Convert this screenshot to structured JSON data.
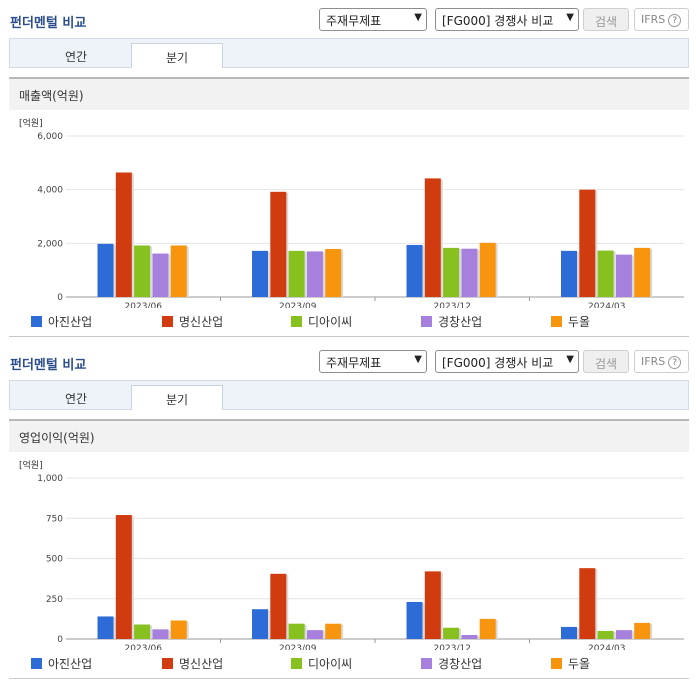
{
  "header": {
    "title": "펀더멘털 비교",
    "statement_select": "주재무제표",
    "compare_select": "[FG000] 경쟁사 비교",
    "search_label": "검색",
    "ifrs_label": "IFRS",
    "help_glyph": "?"
  },
  "tabs": [
    {
      "label": "연간",
      "active": false
    },
    {
      "label": "분기",
      "active": true
    }
  ],
  "legend": [
    {
      "label": "아진산업",
      "color": "#2d6bd6"
    },
    {
      "label": "명신산업",
      "color": "#d13b10"
    },
    {
      "label": "디아이씨",
      "color": "#86c11f"
    },
    {
      "label": "경창산업",
      "color": "#a77fdc"
    },
    {
      "label": "두올",
      "color": "#f7960e"
    }
  ],
  "chart_data": [
    {
      "type": "bar",
      "title": "매출액(억원)",
      "unit_label": "[억원]",
      "categories": [
        "2023/06",
        "2023/09",
        "2023/12",
        "2024/03"
      ],
      "ylim": [
        0,
        6000
      ],
      "yticks": [
        0,
        2000,
        4000,
        6000
      ],
      "ytick_labels": [
        "0",
        "2,000",
        "4,000",
        "6,000"
      ],
      "grid": true,
      "legend_position": "bottom",
      "series": [
        {
          "name": "아진산업",
          "values": [
            1980,
            1720,
            1940,
            1720
          ]
        },
        {
          "name": "명신산업",
          "values": [
            4640,
            3920,
            4420,
            4000
          ]
        },
        {
          "name": "디아이씨",
          "values": [
            1920,
            1720,
            1830,
            1730
          ]
        },
        {
          "name": "경창산업",
          "values": [
            1620,
            1700,
            1800,
            1580
          ]
        },
        {
          "name": "두올",
          "values": [
            1920,
            1790,
            2020,
            1830
          ]
        }
      ]
    },
    {
      "type": "bar",
      "title": "영업이익(억원)",
      "unit_label": "[억원]",
      "categories": [
        "2023/06",
        "2023/09",
        "2023/12",
        "2024/03"
      ],
      "ylim": [
        0,
        1000
      ],
      "yticks": [
        0,
        250,
        500,
        750,
        1000
      ],
      "ytick_labels": [
        "0",
        "250",
        "500",
        "750",
        "1,000"
      ],
      "grid": true,
      "legend_position": "bottom",
      "series": [
        {
          "name": "아진산업",
          "values": [
            140,
            185,
            230,
            75
          ]
        },
        {
          "name": "명신산업",
          "values": [
            770,
            405,
            420,
            440
          ]
        },
        {
          "name": "디아이씨",
          "values": [
            90,
            95,
            70,
            50
          ]
        },
        {
          "name": "경창산업",
          "values": [
            60,
            55,
            25,
            55
          ]
        },
        {
          "name": "두올",
          "values": [
            115,
            95,
            125,
            100
          ]
        }
      ]
    }
  ]
}
